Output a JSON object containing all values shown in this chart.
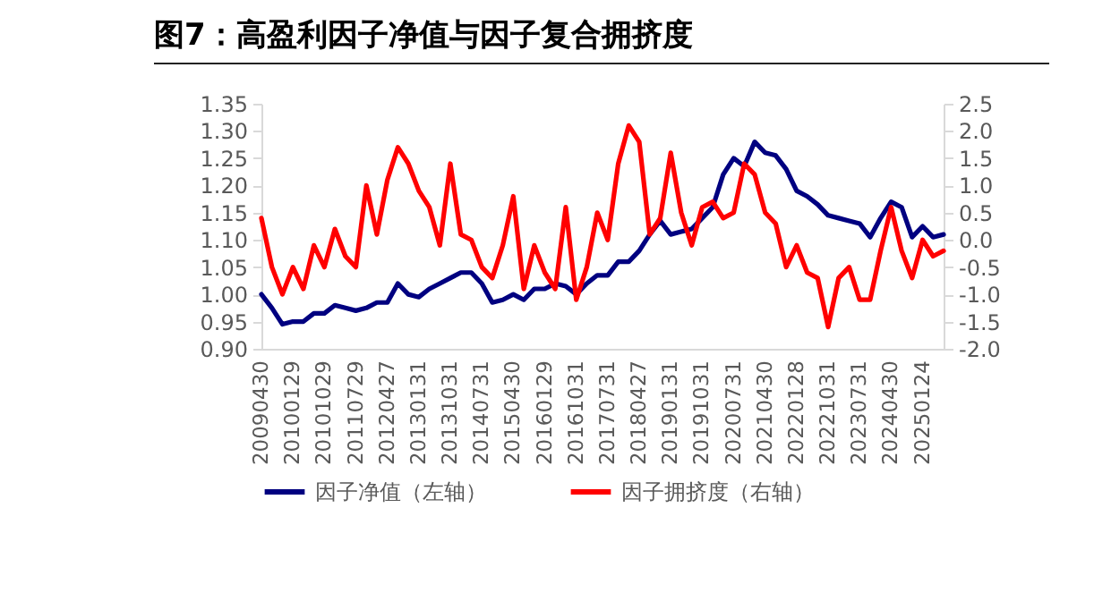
{
  "chart_data": {
    "type": "line",
    "title": "图7：高盈利因子净值与因子复合拥挤度",
    "categories": [
      "20090430",
      null,
      null,
      "20100129",
      null,
      null,
      "20101029",
      null,
      null,
      "20110729",
      null,
      null,
      "20120427",
      null,
      null,
      "20130131",
      null,
      null,
      "20131031",
      null,
      null,
      "20140731",
      null,
      null,
      "20150430",
      null,
      null,
      "20160129",
      null,
      null,
      "20161031",
      null,
      null,
      "20170731",
      null,
      null,
      "20180427",
      null,
      null,
      "20190131",
      null,
      null,
      "20191031",
      null,
      null,
      "20200731",
      null,
      null,
      "20210430",
      null,
      null,
      "20220128",
      null,
      null,
      "20221031",
      null,
      null,
      "20230731",
      null,
      null,
      "20240430",
      null,
      null,
      "20250124",
      null,
      null
    ],
    "series": [
      {
        "name": "因子净值（左轴）",
        "color": "#000080",
        "values": [
          1.0,
          0.975,
          0.945,
          0.95,
          0.95,
          0.965,
          0.965,
          0.98,
          0.975,
          0.97,
          0.975,
          0.985,
          0.985,
          1.02,
          1.0,
          0.995,
          1.01,
          1.02,
          1.03,
          1.04,
          1.04,
          1.02,
          0.985,
          0.99,
          1.0,
          0.99,
          1.01,
          1.01,
          1.02,
          1.015,
          1.0,
          1.02,
          1.035,
          1.035,
          1.06,
          1.06,
          1.08,
          1.11,
          1.135,
          1.11,
          1.115,
          1.12,
          1.14,
          1.16,
          1.22,
          1.25,
          1.235,
          1.28,
          1.26,
          1.255,
          1.23,
          1.19,
          1.18,
          1.165,
          1.145,
          1.14,
          1.135,
          1.13,
          1.105,
          1.14,
          1.17,
          1.16,
          1.105,
          1.125,
          1.105,
          1.11
        ]
      },
      {
        "name": "因子拥挤度（右轴）",
        "color": "#ff0000",
        "axis": "y2",
        "values": [
          0.4,
          -0.5,
          -1.0,
          -0.5,
          -0.9,
          -0.1,
          -0.5,
          0.2,
          -0.3,
          -0.5,
          1.0,
          0.1,
          1.1,
          1.7,
          1.4,
          0.9,
          0.6,
          -0.1,
          1.4,
          0.1,
          0.0,
          -0.5,
          -0.7,
          -0.1,
          0.8,
          -0.9,
          -0.1,
          -0.6,
          -0.9,
          0.6,
          -1.1,
          -0.5,
          0.5,
          0.0,
          1.4,
          2.1,
          1.8,
          0.1,
          0.4,
          1.6,
          0.5,
          -0.1,
          0.6,
          0.7,
          0.4,
          0.5,
          1.4,
          1.2,
          0.5,
          0.3,
          -0.5,
          -0.1,
          -0.6,
          -0.7,
          -1.6,
          -0.7,
          -0.5,
          -1.1,
          -1.1,
          -0.2,
          0.6,
          -0.2,
          -0.7,
          0.0,
          -0.3,
          -0.2
        ]
      }
    ],
    "ylim": [
      0.9,
      1.35
    ],
    "yticks": [
      {
        "value": 0.9,
        "label": "0.90"
      },
      {
        "value": 0.95,
        "label": "0.95"
      },
      {
        "value": 1.0,
        "label": "1.00"
      },
      {
        "value": 1.05,
        "label": "1.05"
      },
      {
        "value": 1.1,
        "label": "1.10"
      },
      {
        "value": 1.15,
        "label": "1.15"
      },
      {
        "value": 1.2,
        "label": "1.20"
      },
      {
        "value": 1.25,
        "label": "1.25"
      },
      {
        "value": 1.3,
        "label": "1.30"
      },
      {
        "value": 1.35,
        "label": "1.35"
      }
    ],
    "y2lim": [
      -2.0,
      2.5
    ],
    "y2ticks": [
      {
        "value": -2,
        "label": "-2.0"
      },
      {
        "value": -1.5,
        "label": "-1.5"
      },
      {
        "value": -1,
        "label": "-1.0"
      },
      {
        "value": -0.5,
        "label": "-0.5"
      },
      {
        "value": 0,
        "label": "0.0"
      },
      {
        "value": 0.5,
        "label": "0.5"
      },
      {
        "value": 1,
        "label": "1.0"
      },
      {
        "value": 1.5,
        "label": "1.5"
      },
      {
        "value": 2,
        "label": "2.0"
      },
      {
        "value": 2.5,
        "label": "2.5"
      }
    ],
    "legend": "bottom",
    "grid": false,
    "marker": "none",
    "line_style": "solid"
  }
}
